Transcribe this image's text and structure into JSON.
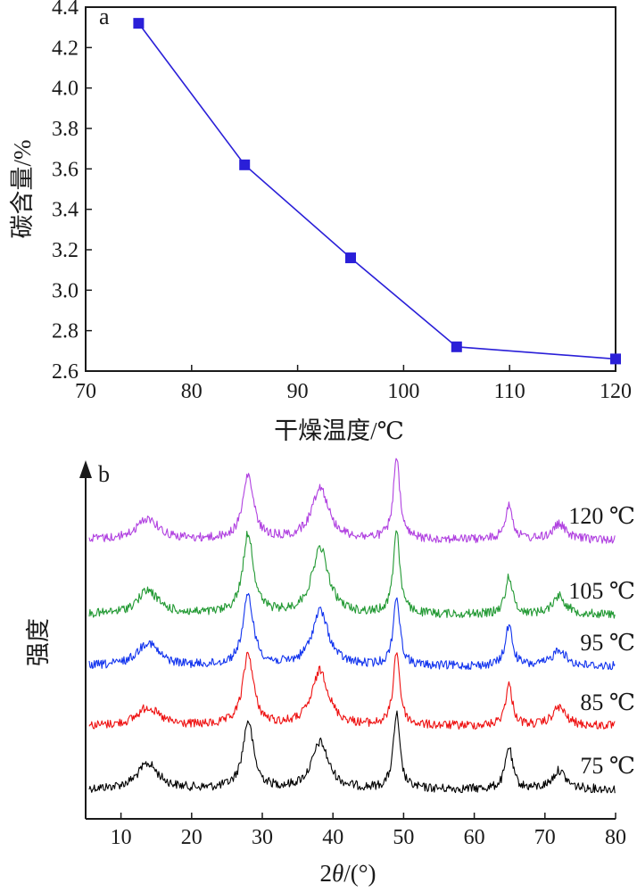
{
  "chart_data": [
    {
      "type": "line",
      "panel_label": "a",
      "xlabel": "干燥温度/℃",
      "ylabel": "碳含量/%",
      "xlim": [
        70,
        120
      ],
      "ylim": [
        2.6,
        4.4
      ],
      "xticks": [
        70,
        80,
        90,
        100,
        110,
        120
      ],
      "yticks": [
        2.6,
        2.8,
        3.0,
        3.2,
        3.4,
        3.6,
        3.8,
        4.0,
        4.2,
        4.4
      ],
      "ytick_labels": [
        "2.6",
        "2.8",
        "3.0",
        "3.2",
        "3.4",
        "3.6",
        "3.8",
        "4.0",
        "4.2",
        "4.4"
      ],
      "x": [
        75,
        85,
        95,
        105,
        120
      ],
      "y": [
        4.32,
        3.62,
        3.16,
        2.72,
        2.66
      ],
      "color": "#2a1fd8",
      "marker": "square",
      "grid": false
    },
    {
      "type": "line",
      "panel_label": "b",
      "xlabel": "2θ/(°)",
      "ylabel": "强度",
      "xlim": [
        5,
        80
      ],
      "xticks": [
        10,
        20,
        30,
        40,
        50,
        60,
        70,
        80
      ],
      "y_axis_ticks": false,
      "grid": false,
      "peaks_2theta": [
        13.8,
        28.0,
        38.2,
        49.0,
        64.9,
        72.0
      ],
      "series": [
        {
          "name": "75 ℃",
          "color": "#000000",
          "peak_heights": [
            0.3,
            0.8,
            0.55,
            0.88,
            0.5,
            0.22
          ]
        },
        {
          "name": "85 ℃",
          "color": "#ee1111",
          "peak_heights": [
            0.22,
            0.85,
            0.65,
            0.88,
            0.48,
            0.22
          ]
        },
        {
          "name": "95 ℃",
          "color": "#1133ee",
          "peak_heights": [
            0.28,
            0.82,
            0.65,
            0.82,
            0.48,
            0.2
          ]
        },
        {
          "name": "105 ℃",
          "color": "#229933",
          "peak_heights": [
            0.28,
            0.95,
            0.78,
            1.0,
            0.45,
            0.22
          ]
        },
        {
          "name": "120 ℃",
          "color": "#b040e0",
          "peak_heights": [
            0.25,
            0.75,
            0.62,
            0.95,
            0.42,
            0.18
          ]
        }
      ]
    }
  ]
}
